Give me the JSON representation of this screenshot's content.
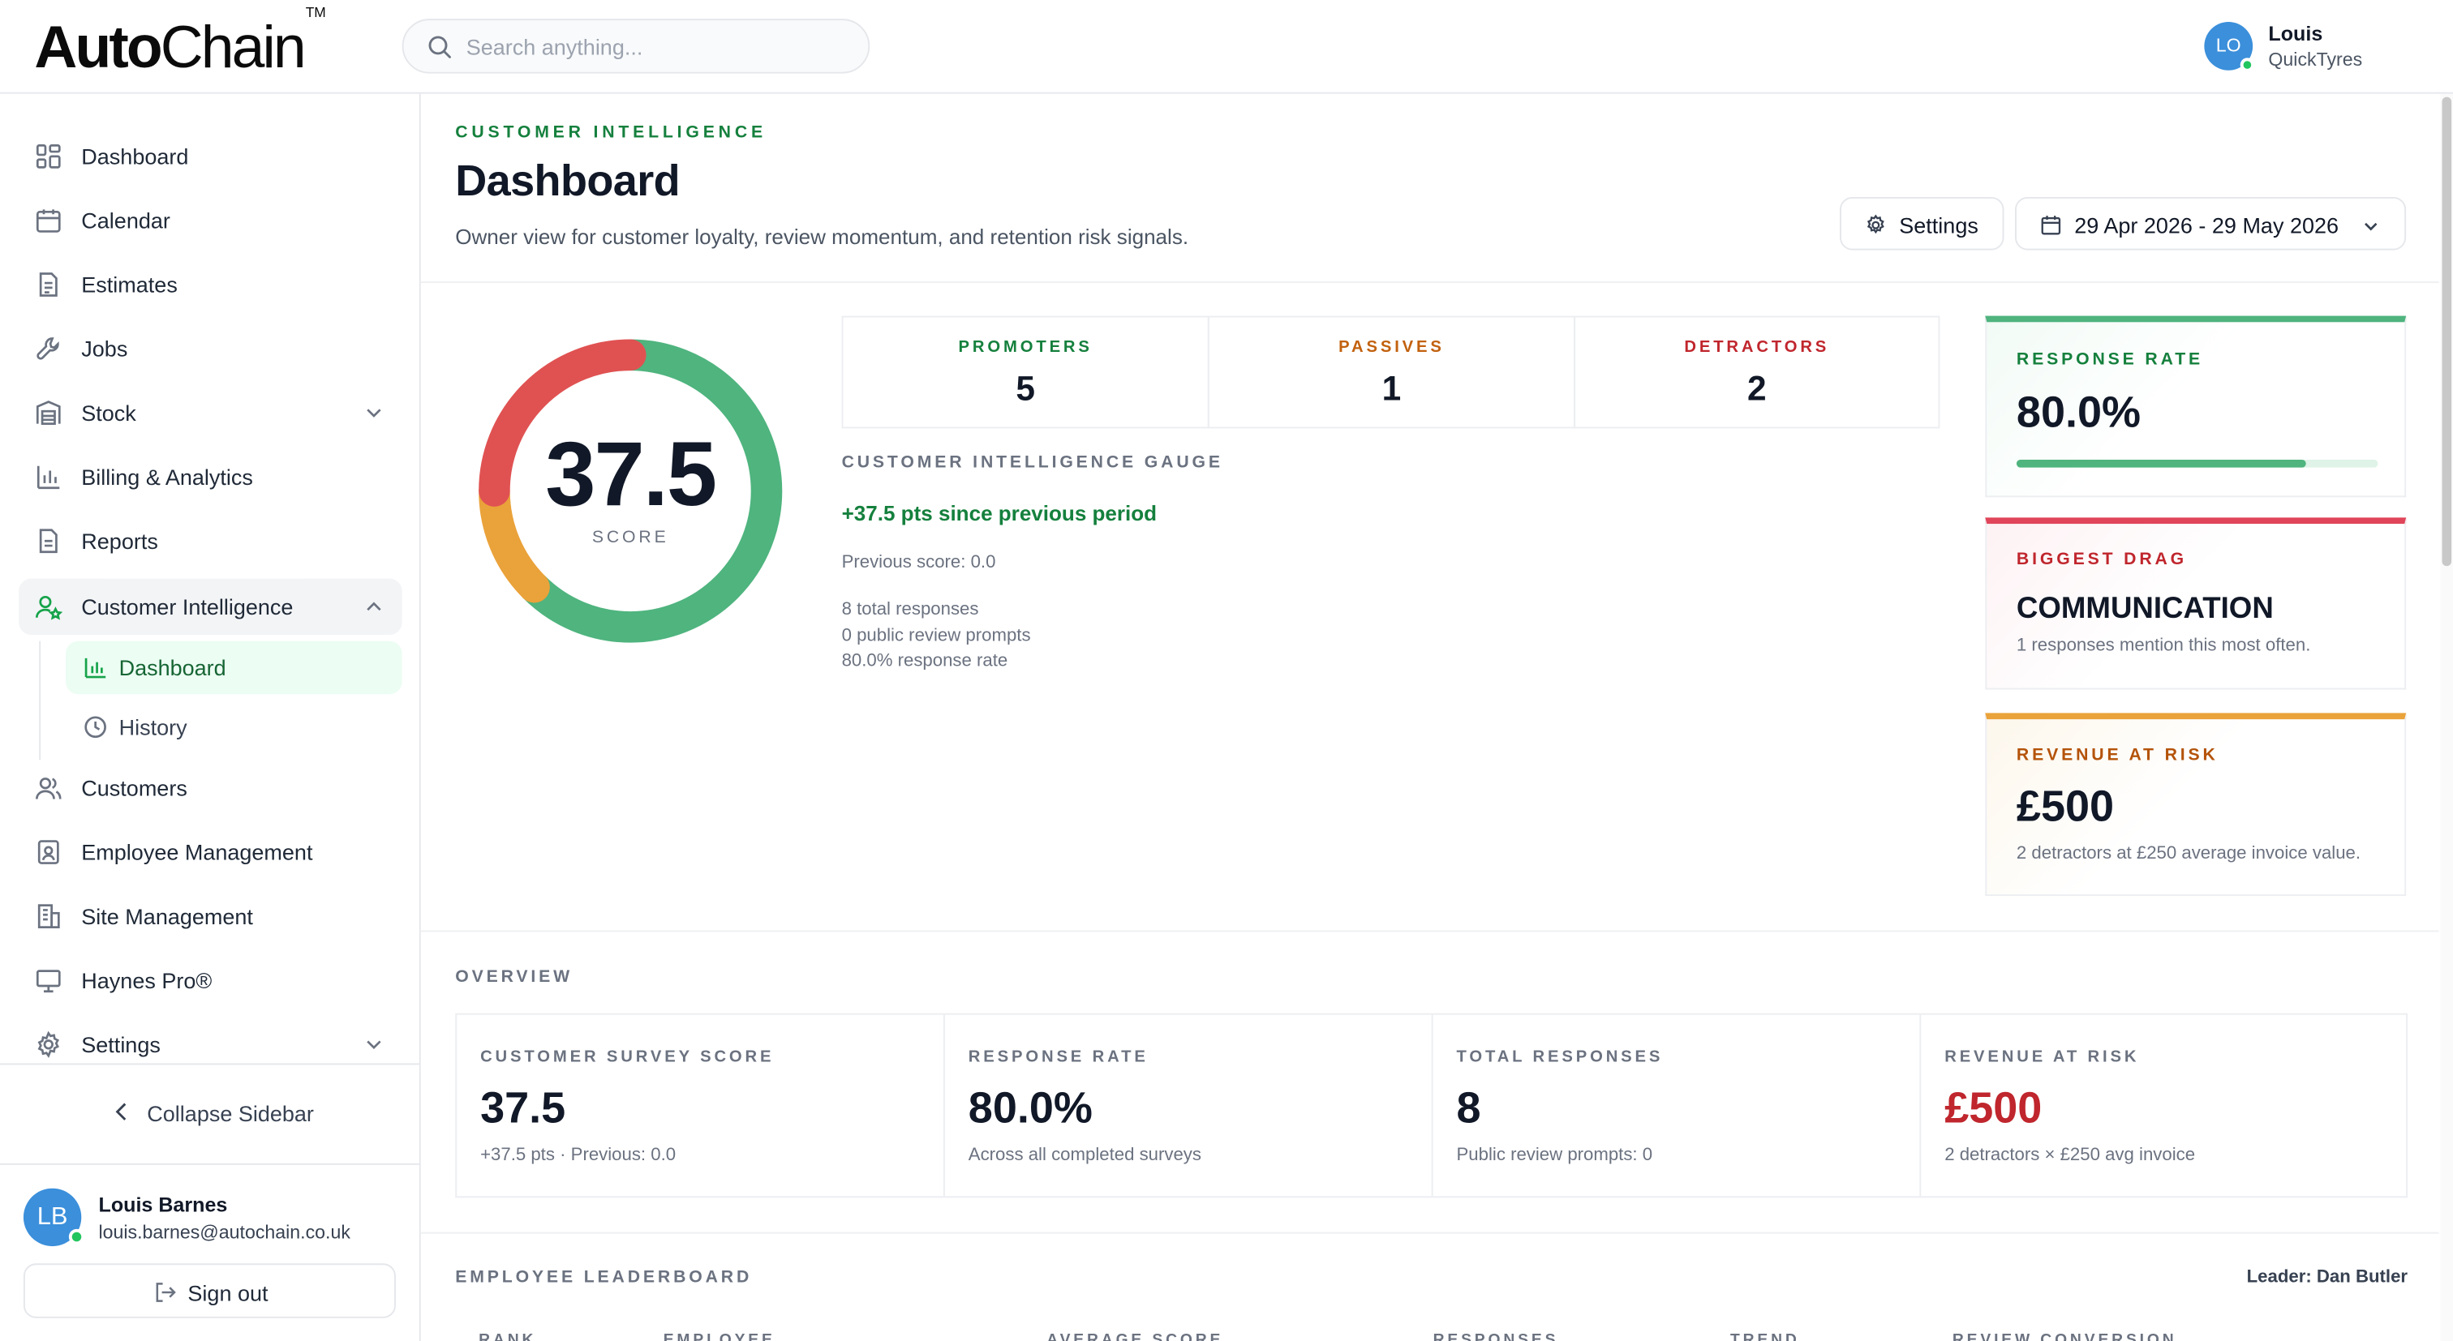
{
  "brand": {
    "name_bold": "Auto",
    "name_light": "Chain",
    "tm": "TM"
  },
  "search": {
    "placeholder": "Search anything..."
  },
  "current_user": {
    "initials": "LO",
    "name": "Louis",
    "org": "QuickTyres"
  },
  "sidebar": {
    "items": [
      {
        "label": "Dashboard",
        "icon": "grid-icon"
      },
      {
        "label": "Calendar",
        "icon": "calendar-icon"
      },
      {
        "label": "Estimates",
        "icon": "document-icon"
      },
      {
        "label": "Jobs",
        "icon": "wrench-icon"
      },
      {
        "label": "Stock",
        "icon": "warehouse-icon",
        "expandable": true
      },
      {
        "label": "Billing & Analytics",
        "icon": "bar-chart-icon"
      },
      {
        "label": "Reports",
        "icon": "report-icon"
      },
      {
        "label": "Customer Intelligence",
        "icon": "user-star-icon",
        "expanded": true
      },
      {
        "label": "Customers",
        "icon": "users-icon"
      },
      {
        "label": "Employee Management",
        "icon": "id-badge-icon"
      },
      {
        "label": "Site Management",
        "icon": "building-icon"
      },
      {
        "label": "Haynes Pro®",
        "icon": "monitor-icon"
      },
      {
        "label": "Settings",
        "icon": "gear-icon",
        "expandable": true
      }
    ],
    "sub_items": [
      {
        "label": "Dashboard",
        "icon": "bar-chart-icon",
        "active": true
      },
      {
        "label": "History",
        "icon": "clock-icon"
      }
    ],
    "collapse_label": "Collapse Sidebar",
    "user": {
      "initials": "LB",
      "name": "Louis Barnes",
      "email": "louis.barnes@autochain.co.uk"
    },
    "sign_out_label": "Sign out"
  },
  "page": {
    "eyebrow": "CUSTOMER INTELLIGENCE",
    "title": "Dashboard",
    "subtitle": "Owner view for customer loyalty, review momentum, and retention risk signals.",
    "settings_label": "Settings",
    "date_range": "29 Apr 2026 - 29 May 2026"
  },
  "gauge": {
    "score": "37.5",
    "score_caption": "SCORE",
    "segments": [
      {
        "name": "detractors",
        "fraction": 0.25,
        "color": "#e05252"
      },
      {
        "name": "passives",
        "fraction": 0.125,
        "color": "#eaa23a"
      },
      {
        "name": "promoters",
        "fraction": 0.625,
        "color": "#4fb47e"
      }
    ],
    "title": "CUSTOMER INTELLIGENCE GAUGE",
    "delta": "+37.5 pts since previous period",
    "previous_score": "Previous score: 0.0",
    "total_responses": "8 total responses",
    "public_review_prompts": "0 public review prompts",
    "response_rate": "80.0% response rate"
  },
  "counts": [
    {
      "label": "PROMOTERS",
      "value": "5",
      "color": "#15803d"
    },
    {
      "label": "PASSIVES",
      "value": "1",
      "color": "#c2610f"
    },
    {
      "label": "DETRACTORS",
      "value": "2",
      "color": "#c0262d"
    }
  ],
  "cards": {
    "response_rate": {
      "label": "RESPONSE RATE",
      "value": "80.0%",
      "progress": 0.8,
      "color": "#4fb47e"
    },
    "biggest_drag": {
      "label": "BIGGEST DRAG",
      "value": "COMMUNICATION",
      "desc": "1 responses mention this most often.",
      "color": "#e0455a"
    },
    "revenue_at_risk": {
      "label": "REVENUE AT RISK",
      "value": "£500",
      "desc": "2 detractors at £250 average invoice value.",
      "color": "#eaa23a"
    }
  },
  "overview": {
    "title": "OVERVIEW",
    "metrics": [
      {
        "label": "CUSTOMER SURVEY SCORE",
        "value": "37.5",
        "desc": "+37.5 pts · Previous: 0.0"
      },
      {
        "label": "RESPONSE RATE",
        "value": "80.0%",
        "desc": "Across all completed surveys"
      },
      {
        "label": "TOTAL RESPONSES",
        "value": "8",
        "desc": "Public review prompts: 0"
      },
      {
        "label": "REVENUE AT RISK",
        "value": "£500",
        "desc": "2 detractors × £250 avg invoice",
        "color": "#c0262d"
      }
    ]
  },
  "leaderboard": {
    "title": "EMPLOYEE LEADERBOARD",
    "leader": "Leader: Dan Butler",
    "columns": [
      "RANK",
      "EMPLOYEE",
      "AVERAGE SCORE",
      "RESPONSES",
      "TREND",
      "REVIEW CONVERSION"
    ]
  }
}
